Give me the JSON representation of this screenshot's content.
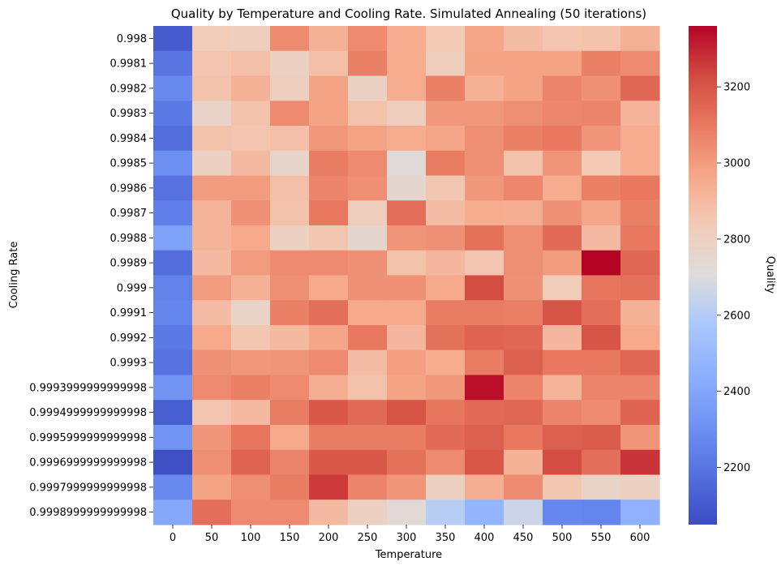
{
  "chart_data": {
    "type": "heatmap",
    "title": "Quality by Temperature and Cooling Rate. Simulated Annealing (50 iterations)",
    "xlabel": "Temperature",
    "ylabel": "Cooling Rate",
    "colorbar_label": "Quality",
    "colormap": "coolwarm",
    "vmin": 2050,
    "vmax": 3360,
    "colorbar_ticks": [
      "2200",
      "2400",
      "2600",
      "2800",
      "3000",
      "3200"
    ],
    "x": [
      "0",
      "50",
      "100",
      "150",
      "200",
      "250",
      "300",
      "350",
      "400",
      "450",
      "500",
      "550",
      "600"
    ],
    "y": [
      "0.998",
      "0.9981",
      "0.9982",
      "0.9983",
      "0.9984",
      "0.9985",
      "0.9986",
      "0.9987",
      "0.9988",
      "0.9989",
      "0.999",
      "0.9991",
      "0.9992",
      "0.9993",
      "0.9993999999999998",
      "0.9994999999999998",
      "0.9995999999999998",
      "0.9996999999999998",
      "0.9997999999999998",
      "0.9998999999999998"
    ],
    "values": [
      [
        2110,
        2830,
        2810,
        3050,
        2930,
        3050,
        2950,
        2840,
        2970,
        2890,
        2860,
        2870,
        2930
      ],
      [
        2200,
        2860,
        2880,
        2800,
        2880,
        3080,
        2950,
        2820,
        2980,
        2980,
        2980,
        3080,
        3050
      ],
      [
        2280,
        2870,
        2930,
        2810,
        2980,
        2790,
        2950,
        3080,
        2930,
        2980,
        3070,
        3030,
        3150
      ],
      [
        2220,
        2780,
        2870,
        3050,
        2980,
        2870,
        2820,
        3010,
        3010,
        3040,
        3060,
        3070,
        2920
      ],
      [
        2170,
        2870,
        2860,
        2880,
        3010,
        2980,
        2950,
        2970,
        3040,
        3080,
        3100,
        3020,
        2950
      ],
      [
        2300,
        2800,
        2900,
        2770,
        3090,
        3050,
        2720,
        3090,
        3040,
        2870,
        3020,
        2840,
        2950
      ],
      [
        2190,
        3000,
        3000,
        2880,
        3070,
        3040,
        2750,
        2850,
        3010,
        3060,
        2950,
        3080,
        3100
      ],
      [
        2240,
        2920,
        3030,
        2870,
        3100,
        2820,
        3130,
        2890,
        2950,
        2940,
        3030,
        2970,
        3080
      ],
      [
        2380,
        2920,
        2960,
        2800,
        2850,
        2750,
        3020,
        3030,
        3120,
        3040,
        3140,
        2900,
        3100
      ],
      [
        2170,
        2900,
        3000,
        3050,
        3050,
        3030,
        2870,
        2910,
        2860,
        3040,
        3000,
        3360,
        3150
      ],
      [
        2250,
        3000,
        2930,
        3040,
        2960,
        3030,
        3030,
        2960,
        3220,
        3030,
        2830,
        3110,
        3120
      ],
      [
        2260,
        2890,
        2780,
        3080,
        3130,
        2960,
        2960,
        3090,
        3090,
        3080,
        3200,
        3130,
        2930
      ],
      [
        2220,
        2960,
        2850,
        2900,
        2970,
        3100,
        2910,
        3120,
        3160,
        3150,
        2910,
        3200,
        2960
      ],
      [
        2190,
        3030,
        3010,
        3020,
        3050,
        2890,
        2990,
        2950,
        3090,
        3170,
        3100,
        3100,
        3150
      ],
      [
        2320,
        3050,
        3080,
        3050,
        2940,
        2870,
        2980,
        3010,
        3340,
        3070,
        2920,
        3070,
        3070
      ],
      [
        2120,
        2860,
        2900,
        3090,
        3190,
        3140,
        3200,
        3110,
        3140,
        3150,
        3070,
        3050,
        3160
      ],
      [
        2320,
        3020,
        3110,
        2960,
        3090,
        3090,
        3090,
        3140,
        3170,
        3100,
        3170,
        3180,
        3020
      ],
      [
        2060,
        3040,
        3160,
        3070,
        3190,
        3190,
        3120,
        3050,
        3190,
        2930,
        3220,
        3130,
        3270
      ],
      [
        2280,
        2980,
        3040,
        3090,
        3260,
        3070,
        3020,
        2800,
        2940,
        3050,
        2850,
        2780,
        2800
      ],
      [
        2410,
        3130,
        3050,
        3050,
        2900,
        2800,
        2730,
        2610,
        2470,
        2660,
        2270,
        2260,
        2450
      ]
    ]
  }
}
